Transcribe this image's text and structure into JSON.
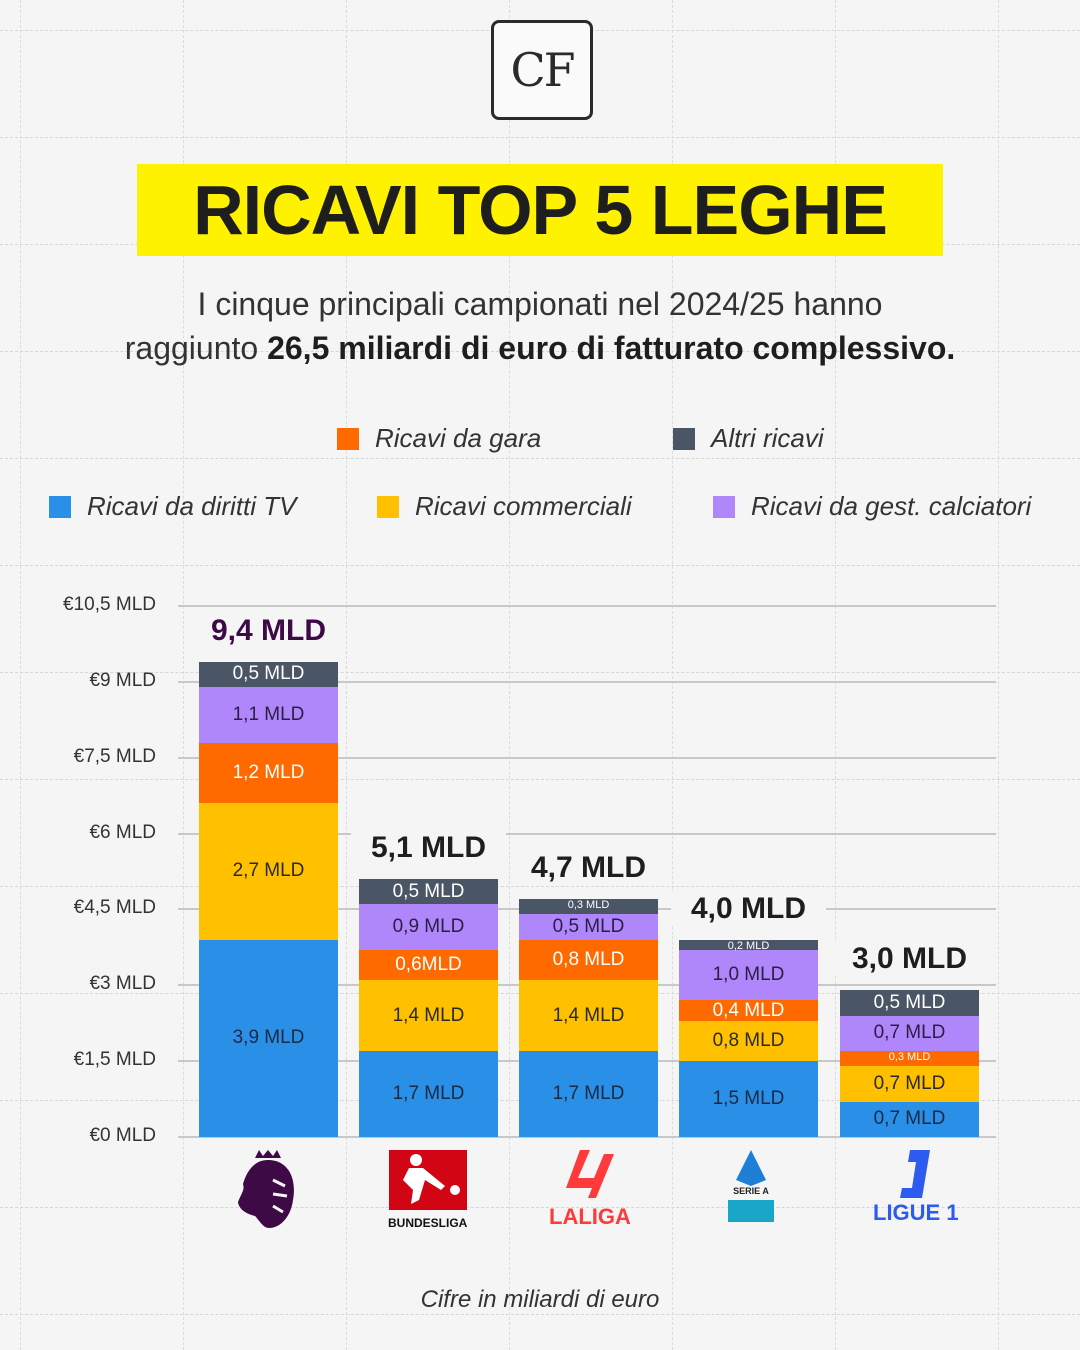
{
  "brand_logo": "CF",
  "title": "RICAVI TOP 5 LEGHE",
  "subtitle": {
    "line1": "I cinque principali campionati nel 2024/25 hanno",
    "line2_plain": "raggiunto ",
    "line2_bold": "26,5 miliardi di euro di fatturato complessivo."
  },
  "footnote": "Cifre in miliardi di euro",
  "chart_data": {
    "type": "bar",
    "stacked": true,
    "categories": [
      "Premier League",
      "Bundesliga",
      "LaLiga",
      "Serie A",
      "Ligue 1"
    ],
    "category_logos": [
      "premier-league",
      "BUNDESLIGA",
      "LALIGA",
      "SERIE A",
      "LIGUE 1"
    ],
    "ylim": [
      0,
      10.5
    ],
    "yticks": [
      0,
      1.5,
      3,
      4.5,
      6,
      7.5,
      9,
      10.5
    ],
    "ytick_labels": [
      "€0 MLD",
      "€1,5 MLD",
      "€3 MLD",
      "€4,5 MLD",
      "€6 MLD",
      "€7,5 MLD",
      "€9 MLD",
      "€10,5 MLD"
    ],
    "grid": true,
    "legend_position": "top",
    "totals": [
      9.4,
      5.1,
      4.7,
      4.0,
      3.0
    ],
    "total_labels": [
      "9,4 MLD",
      "5,1 MLD",
      "4,7 MLD",
      "4,0 MLD",
      "3,0 MLD"
    ],
    "series": [
      {
        "name": "Ricavi da diritti TV",
        "color": "#2a8fe6",
        "text_color": "#1d2a44",
        "values": [
          3.9,
          1.7,
          1.7,
          1.5,
          0.7
        ],
        "labels": [
          "3,9 MLD",
          "1,7 MLD",
          "1,7 MLD",
          "1,5 MLD",
          "0,7 MLD"
        ]
      },
      {
        "name": "Ricavi commerciali",
        "color": "#ffc000",
        "text_color": "#2a2a2a",
        "values": [
          2.7,
          1.4,
          1.4,
          0.8,
          0.7
        ],
        "labels": [
          "2,7 MLD",
          "1,4 MLD",
          "1,4 MLD",
          "0,8 MLD",
          "0,7 MLD"
        ]
      },
      {
        "name": "Ricavi da gara",
        "color": "#ff6a00",
        "text_color": "#ffffff",
        "values": [
          1.2,
          0.6,
          0.8,
          0.4,
          0.3
        ],
        "labels": [
          "1,2 MLD",
          "0,6MLD",
          "0,8 MLD",
          "0,4 MLD",
          "0,3 MLD"
        ]
      },
      {
        "name": "Ricavi da gest. calciatori",
        "color": "#b086fb",
        "text_color": "#2a1e44",
        "values": [
          1.1,
          0.9,
          0.5,
          1.0,
          0.7
        ],
        "labels": [
          "1,1 MLD",
          "0,9 MLD",
          "0,5 MLD",
          "1,0 MLD",
          "0,7 MLD"
        ]
      },
      {
        "name": "Altri ricavi",
        "color": "#4a5566",
        "text_color": "#ffffff",
        "values": [
          0.5,
          0.5,
          0.3,
          0.2,
          0.5
        ],
        "labels": [
          "0,5 MLD",
          "0,5 MLD",
          "0,3 MLD",
          "0,2 MLD",
          "0,5 MLD"
        ]
      }
    ]
  }
}
